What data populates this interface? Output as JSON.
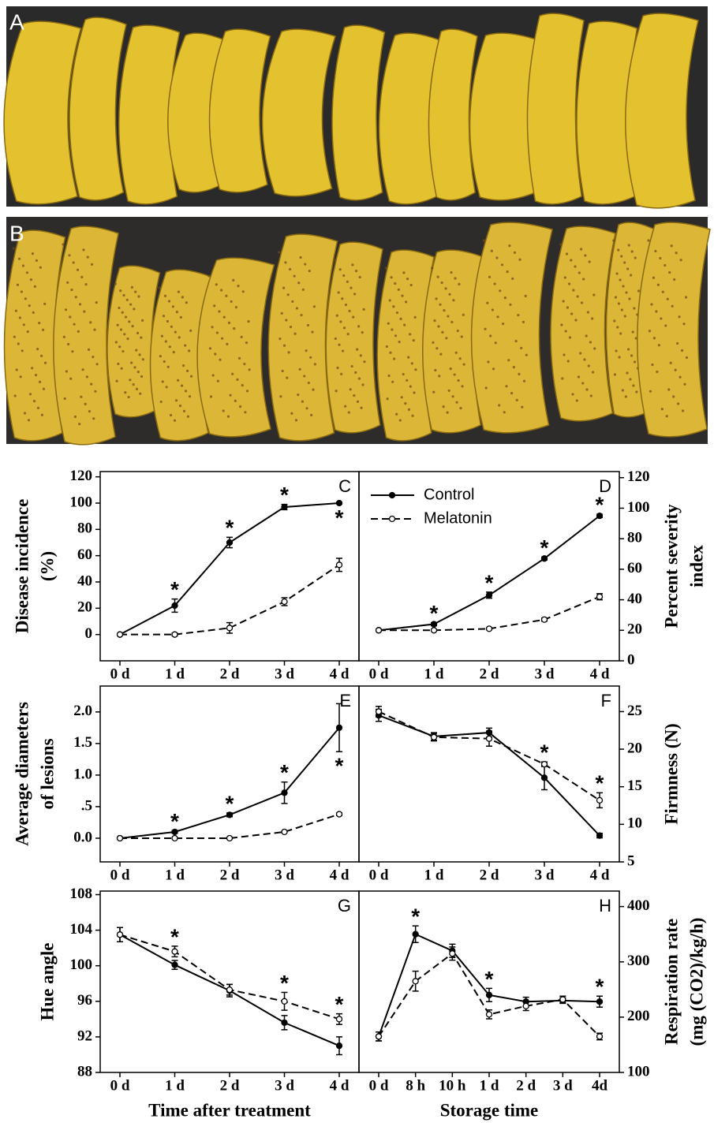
{
  "images": [
    {
      "label": "A"
    },
    {
      "label": "B"
    }
  ],
  "chart_data": [
    {
      "type": "line",
      "panel": "C",
      "ylabel": [
        "Disease incidence",
        "(%)"
      ],
      "yaxis": "left",
      "categories": [
        "0 d",
        "1 d",
        "2 d",
        "3 d",
        "4 d"
      ],
      "ylim": [
        -20,
        124
      ],
      "yticks": [
        0,
        20,
        40,
        60,
        80,
        100,
        120
      ],
      "series": [
        {
          "color": "#000",
          "style": "solid",
          "marker": "filled",
          "values": [
            0,
            22,
            70,
            97,
            100
          ],
          "errors": [
            0,
            5,
            4,
            2,
            0.5
          ]
        },
        {
          "color": "#000",
          "style": "dashed",
          "marker": "open",
          "values": [
            0,
            0,
            5,
            25,
            53
          ],
          "errors": [
            0,
            1,
            4,
            3,
            5
          ]
        }
      ],
      "annotations": [
        {
          "text": "*",
          "category": 1
        },
        {
          "text": "*",
          "category": 2
        },
        {
          "text": "*",
          "category": 3
        },
        {
          "text": "*",
          "category": 4,
          "position": "below"
        }
      ]
    },
    {
      "type": "line",
      "panel": "D",
      "ylabel": [
        "Percent severity",
        "index"
      ],
      "yaxis": "right",
      "legend": "upper left",
      "categories": [
        "0 d",
        "1 d",
        "2 d",
        "3 d",
        "4 d"
      ],
      "ylim": [
        0,
        124
      ],
      "yticks": [
        0,
        20,
        40,
        60,
        80,
        100,
        120
      ],
      "series": [
        {
          "name": "Control",
          "color": "#000",
          "style": "solid",
          "marker": "filled",
          "values": [
            20,
            24,
            43,
            67,
            95
          ],
          "errors": [
            0.5,
            1,
            2,
            1,
            1
          ]
        },
        {
          "name": "Melatonin",
          "color": "#000",
          "style": "dashed",
          "marker": "open",
          "values": [
            20,
            20,
            21,
            27,
            42
          ],
          "errors": [
            0.5,
            0.5,
            0.5,
            1,
            2
          ]
        }
      ],
      "annotations": [
        {
          "text": "*",
          "category": 1
        },
        {
          "text": "*",
          "category": 2
        },
        {
          "text": "*",
          "category": 3
        },
        {
          "text": "*",
          "category": 4
        }
      ]
    },
    {
      "type": "line",
      "panel": "E",
      "ylabel": [
        "Average diameters",
        "of lesions"
      ],
      "yaxis": "left",
      "categories": [
        "0 d",
        "1 d",
        "2 d",
        "3 d",
        "4 d"
      ],
      "ylim": [
        -0.375,
        2.41
      ],
      "yticks": [
        {
          "value": 0,
          "label": "0.0"
        },
        {
          "value": 0.5,
          "label": ".5"
        },
        {
          "value": 1,
          "label": "1.0"
        },
        1.5,
        {
          "value": 2,
          "label": "2.0"
        }
      ],
      "series": [
        {
          "color": "#000",
          "style": "solid",
          "marker": "filled",
          "values": [
            0,
            0.1,
            0.37,
            0.72,
            1.75
          ],
          "errors": [
            0,
            0.02,
            0.03,
            0.17,
            0.38
          ]
        },
        {
          "color": "#000",
          "style": "dashed",
          "marker": "open",
          "values": [
            0,
            0,
            0,
            0.1,
            0.38
          ],
          "errors": [
            0,
            0,
            0,
            0.01,
            0.02
          ]
        }
      ],
      "annotations": [
        {
          "text": "*",
          "category": 1
        },
        {
          "text": "*",
          "category": 2
        },
        {
          "text": "*",
          "category": 3
        },
        {
          "text": "*",
          "category": 4,
          "position": "below"
        }
      ]
    },
    {
      "type": "line",
      "panel": "F",
      "ylabel": [
        "Firmness (N)"
      ],
      "yaxis": "right",
      "categories": [
        "0 d",
        "1 d",
        "2 d",
        "3 d",
        "4 d"
      ],
      "ylim": [
        5,
        28.4
      ],
      "yticks": [
        5,
        10,
        15,
        20,
        25
      ],
      "series": [
        {
          "color": "#000",
          "style": "solid",
          "marker": "filled",
          "values": [
            24.5,
            21.7,
            22.2,
            16.2,
            8.5
          ],
          "errors": [
            0.8,
            0.5,
            0.6,
            1.6,
            0.3
          ]
        },
        {
          "color": "#000",
          "style": "dashed",
          "marker": "open",
          "values": [
            25,
            21.6,
            21.4,
            18,
            13.2
          ],
          "errors": [
            0.7,
            0.5,
            1,
            0.3,
            1
          ]
        }
      ],
      "annotations": [
        {
          "text": "*",
          "category": 3
        },
        {
          "text": "*",
          "category": 4
        }
      ]
    },
    {
      "type": "line",
      "panel": "G",
      "ylabel": [
        "Hue angle"
      ],
      "yaxis": "left",
      "xlabel": "Time after treatment",
      "categories": [
        "0 d",
        "1 d",
        "2 d",
        "3 d",
        "4 d"
      ],
      "ylim": [
        88,
        108.4
      ],
      "yticks": [
        88,
        92,
        96,
        100,
        104,
        108
      ],
      "series": [
        {
          "color": "#000",
          "style": "solid",
          "marker": "filled",
          "values": [
            103.5,
            100.1,
            97.2,
            93.6,
            91
          ],
          "errors": [
            0.8,
            0.5,
            0.7,
            0.8,
            1
          ]
        },
        {
          "color": "#000",
          "style": "dashed",
          "marker": "open",
          "values": [
            103.5,
            101.6,
            97.3,
            96,
            94
          ],
          "errors": [
            0.8,
            0.6,
            0.6,
            1,
            0.6
          ]
        }
      ],
      "annotations": [
        {
          "text": "*",
          "category": 1
        },
        {
          "text": "*",
          "category": 3
        },
        {
          "text": "*",
          "category": 4
        }
      ]
    },
    {
      "type": "line",
      "panel": "H",
      "ylabel": [
        "Respiration rate",
        "(mg (CO2)/kg/h)"
      ],
      "yaxis": "right",
      "xlabel": "Storage time",
      "categories": [
        "0 d",
        "8 h",
        "10 h",
        "1 d",
        "2 d",
        "3 d",
        "4d"
      ],
      "ylim": [
        100,
        428
      ],
      "yticks": [
        100,
        200,
        300,
        400
      ],
      "series": [
        {
          "color": "#000",
          "style": "solid",
          "marker": "filled",
          "values": [
            165,
            350,
            320,
            240,
            228,
            230,
            228
          ],
          "errors": [
            8,
            15,
            12,
            12,
            8,
            5,
            10
          ]
        },
        {
          "color": "#000",
          "style": "dashed",
          "marker": "open",
          "values": [
            165,
            265,
            315,
            205,
            220,
            232,
            165
          ],
          "errors": [
            8,
            18,
            12,
            8,
            8,
            6,
            6
          ]
        }
      ],
      "annotations": [
        {
          "text": "*",
          "category": 1
        },
        {
          "text": "*",
          "category": 3
        },
        {
          "text": "*",
          "category": 6
        }
      ]
    }
  ]
}
